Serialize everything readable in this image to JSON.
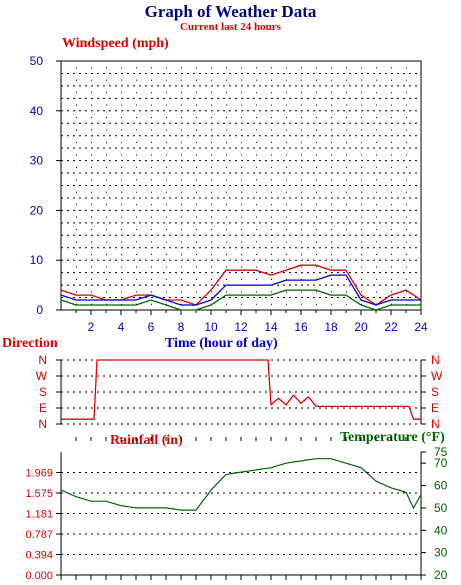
{
  "header": {
    "title": "Graph of Weather Data",
    "subtitle": "Current last 24 hours"
  },
  "colors": {
    "title": "#000080",
    "red": "#e00000",
    "blue": "#0000cc",
    "green": "#006400",
    "grid": "#000000"
  },
  "chart_data": [
    {
      "type": "line",
      "title": "Windspeed (mph)",
      "xlabel": "Time (hour of day)",
      "ylabel": "",
      "xlim": [
        0,
        24
      ],
      "ylim": [
        0,
        50
      ],
      "xticks": [
        "2",
        "4",
        "6",
        "8",
        "10",
        "12",
        "14",
        "16",
        "18",
        "20",
        "22",
        "24"
      ],
      "yticks": [
        "0",
        "10",
        "20",
        "30",
        "40",
        "50"
      ],
      "grid": true,
      "series": [
        {
          "color": "#e00000",
          "x": [
            0,
            1,
            2,
            3,
            4,
            5,
            6,
            7,
            8,
            9,
            10,
            11,
            12,
            13,
            14,
            15,
            16,
            17,
            18,
            19,
            20,
            21,
            22,
            23,
            24
          ],
          "y": [
            4,
            3,
            3,
            2,
            2,
            3,
            3,
            2,
            2,
            1,
            4,
            8,
            8,
            8,
            7,
            8,
            9,
            9,
            8,
            8,
            3,
            1,
            3,
            4,
            2
          ]
        },
        {
          "color": "#0000cc",
          "x": [
            0,
            1,
            2,
            3,
            4,
            5,
            6,
            7,
            8,
            9,
            10,
            11,
            12,
            13,
            14,
            15,
            16,
            17,
            18,
            19,
            20,
            21,
            22,
            23,
            24
          ],
          "y": [
            3,
            2,
            2,
            2,
            2,
            2,
            3,
            2,
            1,
            1,
            2,
            5,
            5,
            5,
            5,
            6,
            6,
            6,
            7,
            7,
            2,
            1,
            2,
            2,
            2
          ]
        },
        {
          "color": "#006400",
          "x": [
            0,
            1,
            2,
            3,
            4,
            5,
            6,
            7,
            8,
            9,
            10,
            11,
            12,
            13,
            14,
            15,
            16,
            17,
            18,
            19,
            20,
            21,
            22,
            23,
            24
          ],
          "y": [
            2,
            1,
            1,
            1,
            1,
            1,
            2,
            1,
            0,
            0,
            1,
            3,
            3,
            3,
            3,
            4,
            4,
            4,
            3,
            3,
            1,
            0,
            1,
            1,
            1
          ]
        }
      ]
    },
    {
      "type": "line",
      "title": "Direction",
      "ylabel": "Direction",
      "xlim": [
        0,
        24
      ],
      "ycategories": [
        "N",
        "W",
        "S",
        "E",
        "N"
      ],
      "series": [
        {
          "color": "#e00000",
          "x": [
            0,
            2.2,
            2.4,
            6,
            10,
            13.8,
            14,
            14.5,
            15,
            15.5,
            16,
            16.5,
            17,
            20,
            23.2,
            23.5,
            24
          ],
          "y": [
            0.3,
            0.3,
            4,
            4,
            4,
            4,
            1.2,
            1.6,
            1.2,
            1.8,
            1.3,
            1.7,
            1.1,
            1.1,
            1.1,
            0.3,
            0.3
          ]
        }
      ]
    },
    {
      "type": "line",
      "title": "Rainfall (in)",
      "xlim": [
        0,
        24
      ],
      "ylim": [
        0,
        2.362
      ],
      "yticks": [
        "0.000",
        "0.394",
        "0.787",
        "1.181",
        "1.575",
        "1.969"
      ],
      "grid": true,
      "series": []
    },
    {
      "type": "line",
      "title": "Temperature (°F)",
      "xlim": [
        0,
        24
      ],
      "ylim": [
        20,
        75
      ],
      "yticks": [
        "20",
        "30",
        "40",
        "50",
        "60",
        "70",
        "75"
      ],
      "series": [
        {
          "color": "#006400",
          "x": [
            0,
            1,
            2,
            3,
            4,
            5,
            6,
            7,
            8,
            9,
            10,
            11,
            12,
            13,
            14,
            15,
            16,
            17,
            18,
            19,
            20,
            21,
            22,
            23,
            23.5,
            24
          ],
          "y": [
            58,
            55,
            53,
            53,
            51,
            50,
            50,
            50,
            49,
            49,
            58,
            65,
            66,
            67,
            68,
            70,
            71,
            72,
            72,
            70,
            68,
            62,
            59,
            57,
            50,
            56
          ]
        }
      ]
    }
  ]
}
